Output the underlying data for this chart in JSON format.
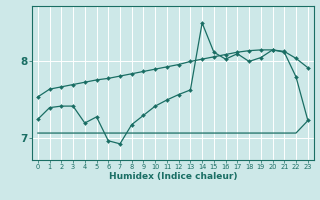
{
  "xlabel": "Humidex (Indice chaleur)",
  "bg_color": "#cde8e8",
  "line_color": "#1a6e64",
  "grid_color": "#ffffff",
  "xlim": [
    -0.5,
    23.5
  ],
  "ylim": [
    6.72,
    8.72
  ],
  "ytick_positions": [
    7.0,
    8.0
  ],
  "ytick_labels": [
    "7",
    "8"
  ],
  "line1_x": [
    0,
    1,
    2,
    3,
    4,
    5,
    6,
    7,
    8,
    9,
    10,
    11,
    12,
    13,
    14,
    15,
    16,
    17,
    18,
    19,
    20,
    21,
    22,
    23
  ],
  "line1_y": [
    7.54,
    7.64,
    7.67,
    7.7,
    7.73,
    7.76,
    7.78,
    7.81,
    7.84,
    7.87,
    7.9,
    7.93,
    7.96,
    8.0,
    8.03,
    8.06,
    8.09,
    8.12,
    8.14,
    8.15,
    8.15,
    8.13,
    8.04,
    7.92
  ],
  "line2_x": [
    0,
    1,
    2,
    3,
    4,
    5,
    6,
    7,
    8,
    9,
    10,
    11,
    12,
    13,
    14,
    15,
    16,
    17,
    18,
    19,
    20,
    21,
    22,
    23
  ],
  "line2_y": [
    7.25,
    7.4,
    7.42,
    7.42,
    7.2,
    7.28,
    6.97,
    6.93,
    7.18,
    7.3,
    7.42,
    7.5,
    7.57,
    7.63,
    8.5,
    8.12,
    8.03,
    8.1,
    8.0,
    8.05,
    8.15,
    8.12,
    7.8,
    7.24
  ],
  "line3_x": [
    0,
    1,
    2,
    3,
    4,
    5,
    6,
    7,
    8,
    9,
    10,
    11,
    12,
    13,
    14,
    15,
    16,
    17,
    18,
    19,
    20,
    21,
    22,
    23
  ],
  "line3_y": [
    7.07,
    7.07,
    7.07,
    7.07,
    7.07,
    7.07,
    7.07,
    7.07,
    7.07,
    7.07,
    7.07,
    7.07,
    7.07,
    7.07,
    7.07,
    7.07,
    7.07,
    7.07,
    7.07,
    7.07,
    7.07,
    7.07,
    7.07,
    7.23
  ],
  "markersize": 2.0,
  "linewidth": 0.9
}
